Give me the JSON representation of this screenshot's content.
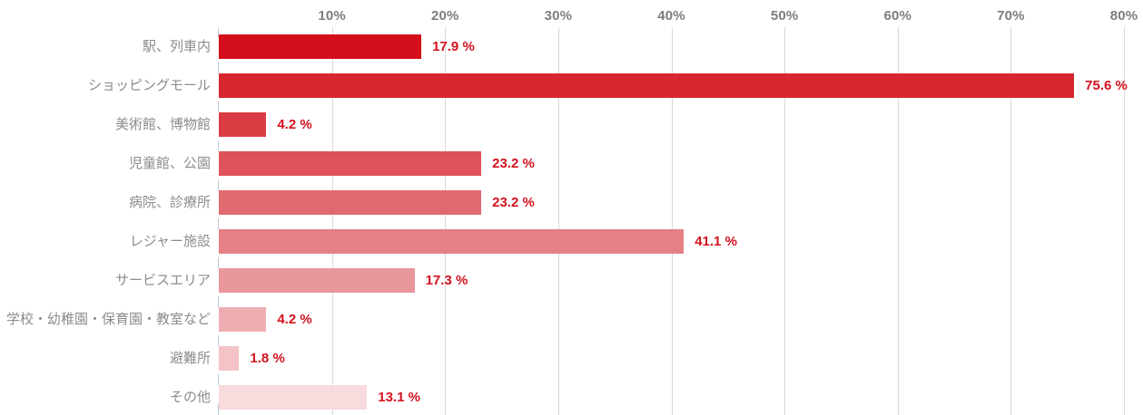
{
  "chart_data": {
    "type": "bar",
    "orientation": "horizontal",
    "title": "",
    "xlabel": "",
    "ylabel": "",
    "categories": [
      "駅、列車内",
      "ショッピングモール",
      "美術館、博物館",
      "児童館、公園",
      "病院、診療所",
      "レジャー施設",
      "サービスエリア",
      "学校・幼稚園・保育園・教室など",
      "避難所",
      "その他"
    ],
    "values": [
      17.9,
      75.6,
      4.2,
      23.2,
      23.2,
      41.1,
      17.3,
      4.2,
      1.8,
      13.1
    ],
    "value_labels": [
      "17.9 %",
      "75.6 %",
      "4.2 %",
      "23.2 %",
      "23.2 %",
      "41.1 %",
      "17.3 %",
      "4.2 %",
      "1.8 %",
      "13.1 %"
    ],
    "bar_colors": [
      "#d50e1b",
      "#d8262e",
      "#db3c43",
      "#de5359",
      "#e16970",
      "#e58086",
      "#e9969c",
      "#eeadb1",
      "#f3c3c7",
      "#f9dadd"
    ],
    "x_ticks": [
      "10%",
      "20%",
      "30%",
      "40%",
      "50%",
      "60%",
      "70%",
      "80%"
    ],
    "x_tick_values": [
      10,
      20,
      30,
      40,
      50,
      60,
      70,
      80
    ],
    "xlim": [
      0,
      80
    ],
    "grid": true,
    "legend": "none",
    "colors": {
      "value_label": "#d2121e",
      "category_label": "#8c8c8c",
      "axis_tick_label": "#7d7d7d",
      "gridline": "#d9d9d9",
      "axis_tick_mark": "#b9cbda",
      "background": "#ffffff"
    }
  }
}
